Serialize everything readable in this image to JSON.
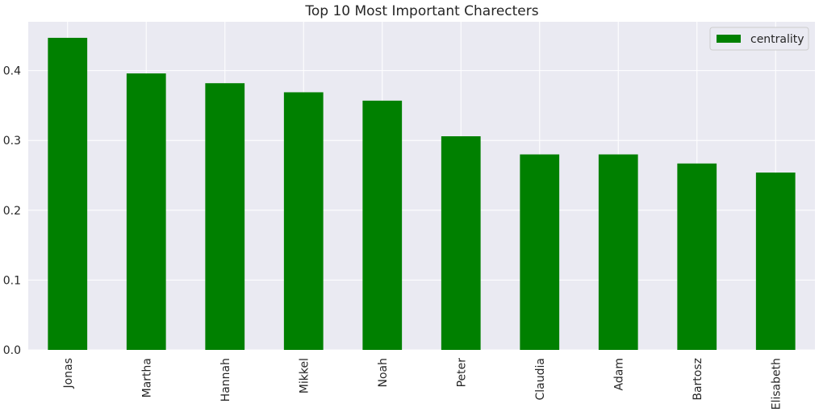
{
  "chart_data": {
    "type": "bar",
    "title": "Top 10 Most Important Charecters",
    "xlabel": "",
    "ylabel": "",
    "categories": [
      "Jonas",
      "Martha",
      "Hannah",
      "Mikkel",
      "Noah",
      "Peter",
      "Claudia",
      "Adam",
      "Bartosz",
      "Elisabeth"
    ],
    "series": [
      {
        "name": "centrality",
        "values": [
          0.447,
          0.396,
          0.382,
          0.369,
          0.357,
          0.306,
          0.28,
          0.28,
          0.267,
          0.254
        ]
      }
    ],
    "ylim": [
      0,
      0.47
    ],
    "yticks": [
      "0.0",
      "0.1",
      "0.2",
      "0.3",
      "0.4"
    ],
    "grid": true,
    "legend_position": "top-right",
    "colors": {
      "bar": "#008000",
      "plot_background": "#eaeaf2",
      "grid": "#ffffff"
    }
  }
}
